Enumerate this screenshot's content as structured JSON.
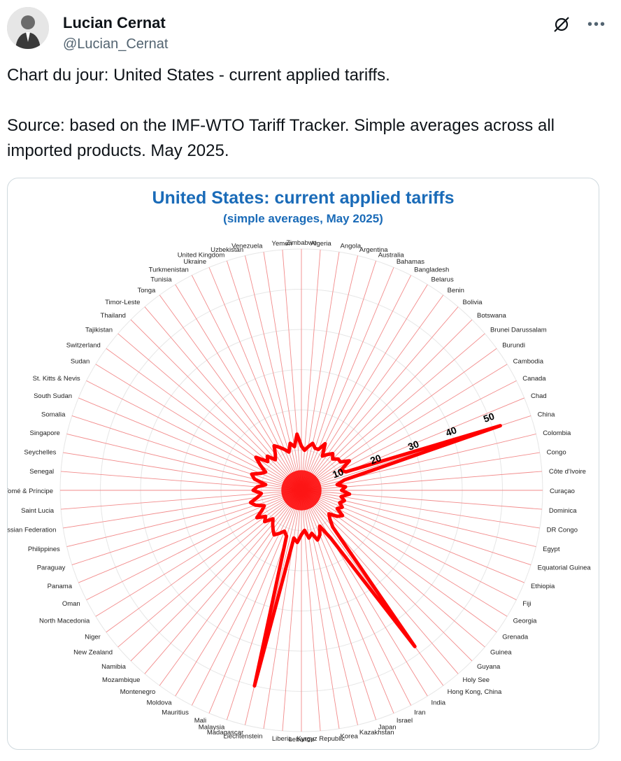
{
  "tweet": {
    "author_name": "Lucian Cernat",
    "author_handle": "@Lucian_Cernat",
    "text_line1": "Chart du jour: United States - current applied tariffs.",
    "text_line2": "Source: based on the IMF-WTO Tariff Tracker. Simple averages across all imported products. May 2025."
  },
  "icons": {
    "grok": "grok-slash-icon",
    "more": "more-dots-icon"
  },
  "colors": {
    "series": "#ff0000",
    "title": "#1a6bb8",
    "grid": "#f28b8b"
  },
  "chart_data": {
    "type": "radar",
    "title": "United States: current applied tariffs",
    "subtitle": "(simple averages, May 2025)",
    "r_ticks": [
      "10",
      "20",
      "30",
      "40",
      "50"
    ],
    "r_range": [
      0,
      60
    ],
    "categories": [
      "Zimbabwe",
      "Algeria",
      "Angola",
      "Argentina",
      "Australia",
      "Bahamas",
      "Bangladesh",
      "Belarus",
      "Benin",
      "Bolivia",
      "Botswana",
      "Brunei Darussalam",
      "Burundi",
      "Cambodia",
      "Canada",
      "Chad",
      "China",
      "Colombia",
      "Congo",
      "Côte d'Ivoire",
      "Curaçao",
      "Dominica",
      "DR Congo",
      "Egypt",
      "Equatorial Guinea",
      "Ethiopia",
      "Fiji",
      "Georgia",
      "Grenada",
      "Guinea",
      "Guyana",
      "Holy See",
      "Hong Kong, China",
      "India",
      "Iran",
      "Israel",
      "Japan",
      "Kazakhstan",
      "Korea",
      "Kyrgyz Republic",
      "Lebanon",
      "Liberia",
      "Liechtenstein",
      "Madagascar",
      "Malaysia",
      "Mali",
      "Mauritius",
      "Moldova",
      "Montenegro",
      "Mozambique",
      "Namibia",
      "New Zealand",
      "Niger",
      "North Macedonia",
      "Oman",
      "Panama",
      "Paraguay",
      "Philippines",
      "Russian Federation",
      "Saint Lucia",
      "São Tomé & Príncipe",
      "Senegal",
      "Seychelles",
      "Singapore",
      "Somalia",
      "South Sudan",
      "St. Kitts & Nevis",
      "Sudan",
      "Switzerland",
      "Tajikistan",
      "Thailand",
      "Timor-Leste",
      "Tonga",
      "Tunisia",
      "Turkmenistan",
      "Ukraine",
      "United Kingdom",
      "Uzbekistan",
      "Venezuela",
      "Yemen"
    ],
    "values": [
      11,
      10,
      11,
      12,
      11,
      11,
      13,
      10,
      11,
      12,
      11,
      12,
      12,
      14,
      11,
      12,
      52,
      11,
      9,
      11,
      10,
      12,
      10,
      11,
      10,
      11,
      10,
      12,
      11,
      9,
      10,
      12,
      48,
      14,
      10,
      12,
      13,
      11,
      12,
      10,
      11,
      13,
      12,
      50,
      12,
      11,
      12,
      13,
      12,
      11,
      10,
      12,
      11,
      13,
      11,
      10,
      12,
      13,
      11,
      10,
      12,
      11,
      9,
      12,
      13,
      11,
      10,
      12,
      14,
      11,
      12,
      10,
      11,
      13,
      12,
      11,
      10,
      12,
      11,
      14
    ]
  }
}
